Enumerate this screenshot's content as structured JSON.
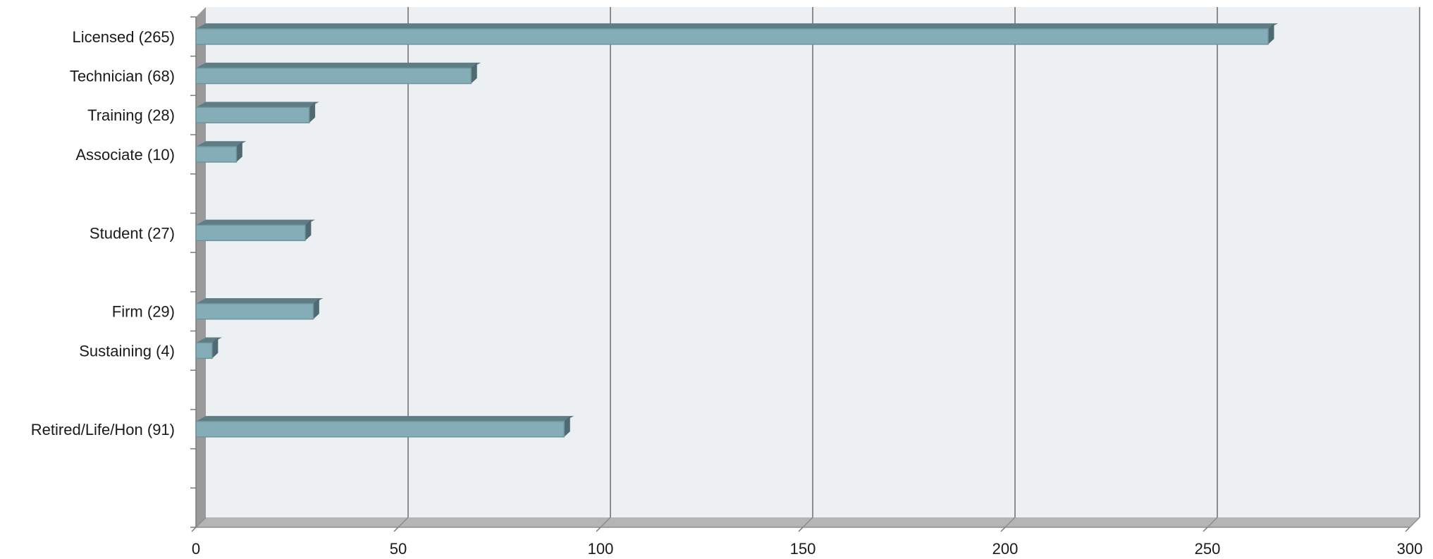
{
  "chart_data": {
    "type": "bar",
    "orientation": "horizontal",
    "style": "3d",
    "categories": [
      "Licensed  (265)",
      "Technician (68)",
      "Training  (28)",
      "Associate (10)",
      "",
      "Student (27)",
      "",
      "Firm (29)",
      "Sustaining  (4)",
      "",
      "Retired/Life/Hon (91)",
      "",
      ""
    ],
    "values": [
      265,
      68,
      28,
      10,
      null,
      27,
      null,
      29,
      4,
      null,
      91,
      null,
      null
    ],
    "xlim": [
      0,
      300
    ],
    "xticks": [
      "0",
      "50",
      "100",
      "150",
      "200",
      "250",
      "300"
    ],
    "grid": "vertical",
    "title": "",
    "xlabel": "",
    "ylabel": "",
    "colors": {
      "bar_front": "#84adb8",
      "bar_top": "#5e7d85",
      "bar_side": "#4f6a71",
      "plot_bg": "#edf0f3",
      "floor": "#b5b5b5",
      "wall": "#9a9a9a",
      "grid": "#8c8c8c"
    }
  }
}
